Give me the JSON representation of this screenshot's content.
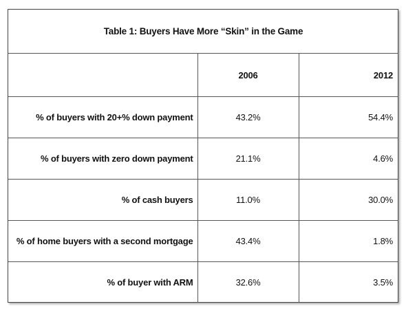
{
  "chart_data": {
    "type": "table",
    "title": "Table 1: Buyers Have More “Skin” in the Game",
    "columns": [
      "",
      "2006",
      "2012"
    ],
    "rows": [
      {
        "label": "% of buyers with 20+% down payment",
        "values": [
          "43.2%",
          "54.4%"
        ]
      },
      {
        "label": "% of buyers with zero down payment",
        "values": [
          "21.1%",
          "4.6%"
        ]
      },
      {
        "label": "% of cash buyers",
        "values": [
          "11.0%",
          "30.0%"
        ]
      },
      {
        "label": "% of home buyers with a second mortgage",
        "values": [
          "43.4%",
          "1.8%"
        ]
      },
      {
        "label": "% of buyer with ARM",
        "values": [
          "32.6%",
          "3.5%"
        ]
      }
    ]
  }
}
